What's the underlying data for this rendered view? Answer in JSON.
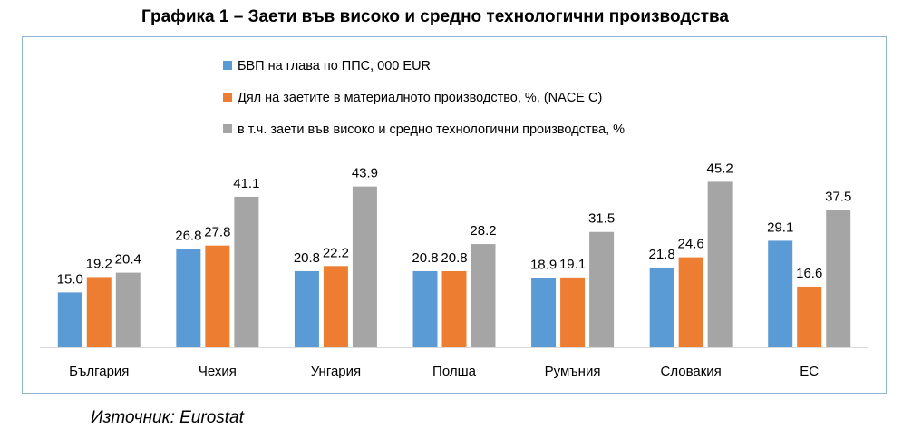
{
  "title": "Графика 1 – Заети във високо и средно технологични производства",
  "source": "Източник: Eurostat",
  "chart_data": {
    "type": "bar",
    "categories": [
      "България",
      "Чехия",
      "Унгария",
      "Полша",
      "Румъния",
      "Словакия",
      "ЕС"
    ],
    "series": [
      {
        "name": "БВП на глава по ППС, 000 EUR",
        "color": "#5b9bd5",
        "values": [
          15.0,
          26.8,
          20.8,
          20.8,
          18.9,
          21.8,
          29.1
        ]
      },
      {
        "name": "Дял на заетите в материалното производство, %, (NACE C)",
        "color": "#ed7d31",
        "values": [
          19.2,
          27.8,
          22.2,
          20.8,
          19.1,
          24.6,
          16.6
        ]
      },
      {
        "name": "в т.ч. заети във високо и средно технологични производства, %",
        "color": "#a5a5a5",
        "values": [
          20.4,
          41.1,
          43.9,
          28.2,
          31.5,
          45.2,
          37.5
        ]
      }
    ],
    "ylim": [
      0,
      50
    ],
    "grid": false,
    "legend_position": "top",
    "data_labels": true
  }
}
